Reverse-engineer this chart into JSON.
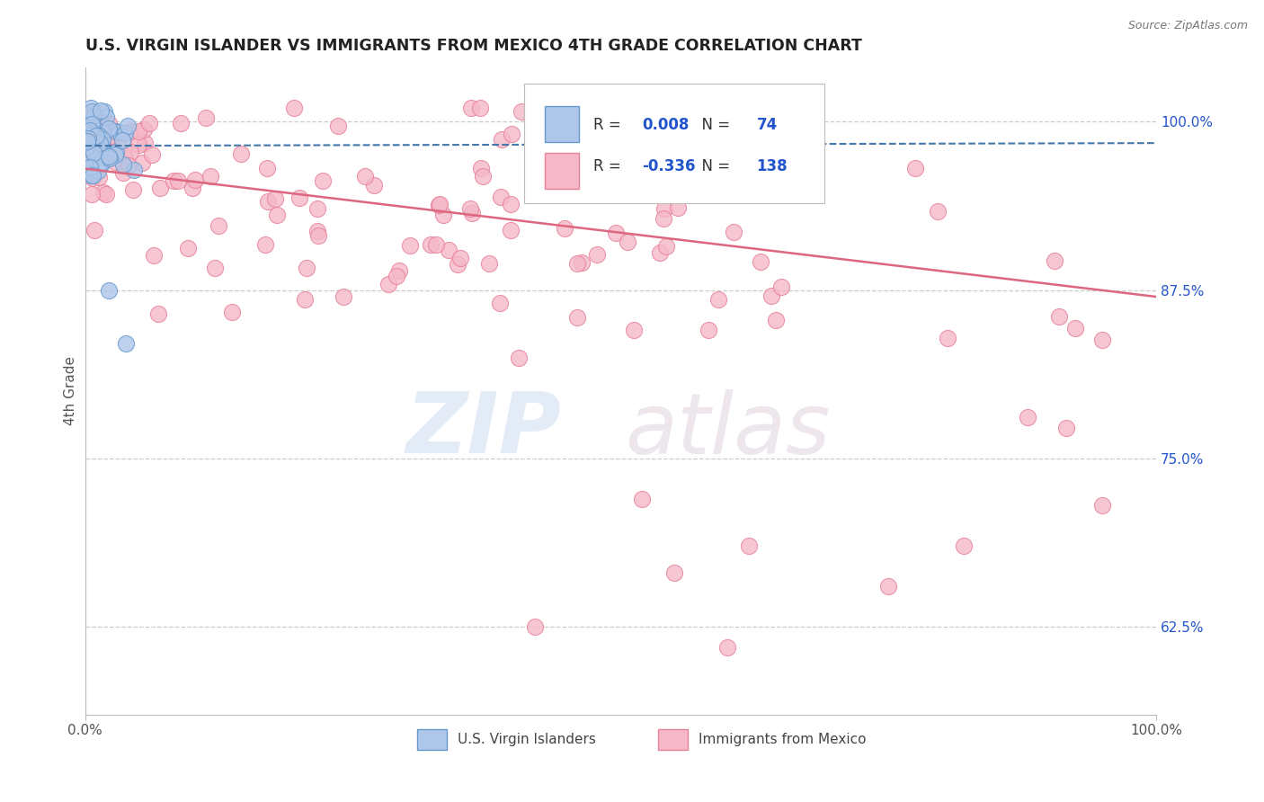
{
  "title": "U.S. VIRGIN ISLANDER VS IMMIGRANTS FROM MEXICO 4TH GRADE CORRELATION CHART",
  "source": "Source: ZipAtlas.com",
  "ylabel": "4th Grade",
  "legend_blue_label": "U.S. Virgin Islanders",
  "legend_pink_label": "Immigrants from Mexico",
  "R_blue": 0.008,
  "N_blue": 74,
  "R_pink": -0.336,
  "N_pink": 138,
  "blue_fill": "#aec6e8",
  "pink_fill": "#f5b8c8",
  "blue_edge": "#6699cc",
  "pink_edge": "#e88099",
  "blue_line": "#4477aa",
  "pink_line": "#dd6680",
  "legend_color": "#2255cc",
  "bg_color": "#ffffff",
  "grid_color": "#cccccc",
  "xmin": 0.0,
  "xmax": 1.0,
  "ymin": 0.56,
  "ymax": 1.04,
  "right_yticks": [
    0.625,
    0.75,
    0.875,
    1.0
  ],
  "right_yticklabels": [
    "62.5%",
    "75.0%",
    "87.5%",
    "100.0%"
  ],
  "watermark_zip_color": "#c8d8f0",
  "watermark_atlas_color": "#d8c8d8"
}
